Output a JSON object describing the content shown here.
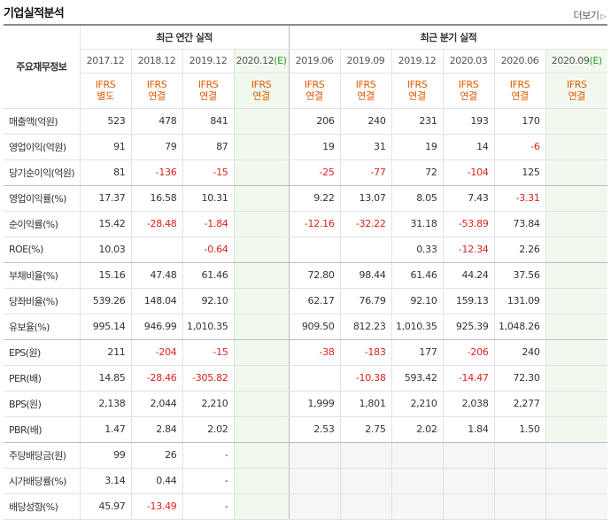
{
  "header": {
    "title": "기업실적분석",
    "more_label": "더보기"
  },
  "table": {
    "row_header_label": "주요재무정보",
    "annual_group_label": "최근 연간 실적",
    "quarter_group_label": "최근 분기 실적",
    "annual_periods": [
      {
        "label": "2017.12",
        "estimate_mark": ""
      },
      {
        "label": "2018.12",
        "estimate_mark": ""
      },
      {
        "label": "2019.12",
        "estimate_mark": ""
      },
      {
        "label": "2020.12",
        "estimate_mark": "(E)"
      }
    ],
    "quarter_periods": [
      {
        "label": "2019.06",
        "estimate_mark": ""
      },
      {
        "label": "2019.09",
        "estimate_mark": ""
      },
      {
        "label": "2019.12",
        "estimate_mark": ""
      },
      {
        "label": "2020.03",
        "estimate_mark": ""
      },
      {
        "label": "2020.06",
        "estimate_mark": ""
      },
      {
        "label": "2020.09",
        "estimate_mark": "(E)"
      }
    ],
    "accounting": [
      [
        "IFRS",
        "별도"
      ],
      [
        "IFRS",
        "연결"
      ],
      [
        "IFRS",
        "연결"
      ],
      [
        "IFRS",
        "연결"
      ],
      [
        "IFRS",
        "연결"
      ],
      [
        "IFRS",
        "연결"
      ],
      [
        "IFRS",
        "연결"
      ],
      [
        "IFRS",
        "연결"
      ],
      [
        "IFRS",
        "연결"
      ],
      [
        "IFRS",
        "연결"
      ]
    ],
    "rows": [
      {
        "label": "매출액(억원)",
        "values": [
          "523",
          "478",
          "841",
          "",
          "206",
          "240",
          "231",
          "193",
          "170",
          ""
        ]
      },
      {
        "label": "영업이익(억원)",
        "values": [
          "91",
          "79",
          "87",
          "",
          "19",
          "31",
          "19",
          "14",
          "-6",
          ""
        ]
      },
      {
        "label": "당기순이익(억원)",
        "values": [
          "81",
          "-136",
          "-15",
          "",
          "-25",
          "-77",
          "72",
          "-104",
          "125",
          ""
        ]
      },
      {
        "label": "영업이익률(%)",
        "values": [
          "17.37",
          "16.58",
          "10.31",
          "",
          "9.22",
          "13.07",
          "8.05",
          "7.43",
          "-3.31",
          ""
        ]
      },
      {
        "label": "순이익률(%)",
        "values": [
          "15.42",
          "-28.48",
          "-1.84",
          "",
          "-12.16",
          "-32.22",
          "31.18",
          "-53.89",
          "73.84",
          ""
        ]
      },
      {
        "label": "ROE(%)",
        "values": [
          "10.03",
          "",
          "-0.64",
          "",
          "",
          "",
          "0.33",
          "-12.34",
          "2.26",
          ""
        ]
      },
      {
        "label": "부채비율(%)",
        "values": [
          "15.16",
          "47.48",
          "61.46",
          "",
          "72.80",
          "98.44",
          "61.46",
          "44.24",
          "37.56",
          ""
        ]
      },
      {
        "label": "당좌비율(%)",
        "values": [
          "539.26",
          "148.04",
          "92.10",
          "",
          "62.17",
          "76.79",
          "92.10",
          "159.13",
          "131.09",
          ""
        ]
      },
      {
        "label": "유보율(%)",
        "values": [
          "995.14",
          "946.99",
          "1,010.35",
          "",
          "909.50",
          "812.23",
          "1,010.35",
          "925.39",
          "1,048.26",
          ""
        ]
      },
      {
        "label": "EPS(원)",
        "values": [
          "211",
          "-204",
          "-15",
          "",
          "-38",
          "-183",
          "177",
          "-206",
          "240",
          ""
        ]
      },
      {
        "label": "PER(배)",
        "values": [
          "14.85",
          "-28.46",
          "-305.82",
          "",
          "",
          "-10.38",
          "593.42",
          "-14.47",
          "72.30",
          ""
        ]
      },
      {
        "label": "BPS(원)",
        "values": [
          "2,138",
          "2,044",
          "2,210",
          "",
          "1,999",
          "1,801",
          "2,210",
          "2,038",
          "2,277",
          ""
        ]
      },
      {
        "label": "PBR(배)",
        "values": [
          "1.47",
          "2.84",
          "2.02",
          "",
          "2.53",
          "2.75",
          "2.02",
          "1.84",
          "1.50",
          ""
        ]
      },
      {
        "label": "주당배당금(원)",
        "values": [
          "99",
          "26",
          "-",
          "",
          "",
          "",
          "",
          "",
          "",
          ""
        ],
        "quarter_blank": true
      },
      {
        "label": "시가배당률(%)",
        "values": [
          "3.14",
          "0.44",
          "-",
          "",
          "",
          "",
          "",
          "",
          "",
          ""
        ],
        "quarter_blank": true
      },
      {
        "label": "배당성향(%)",
        "values": [
          "45.97",
          "-13.49",
          "-",
          "",
          "",
          "",
          "",
          "",
          "",
          ""
        ],
        "quarter_blank": true
      }
    ]
  }
}
